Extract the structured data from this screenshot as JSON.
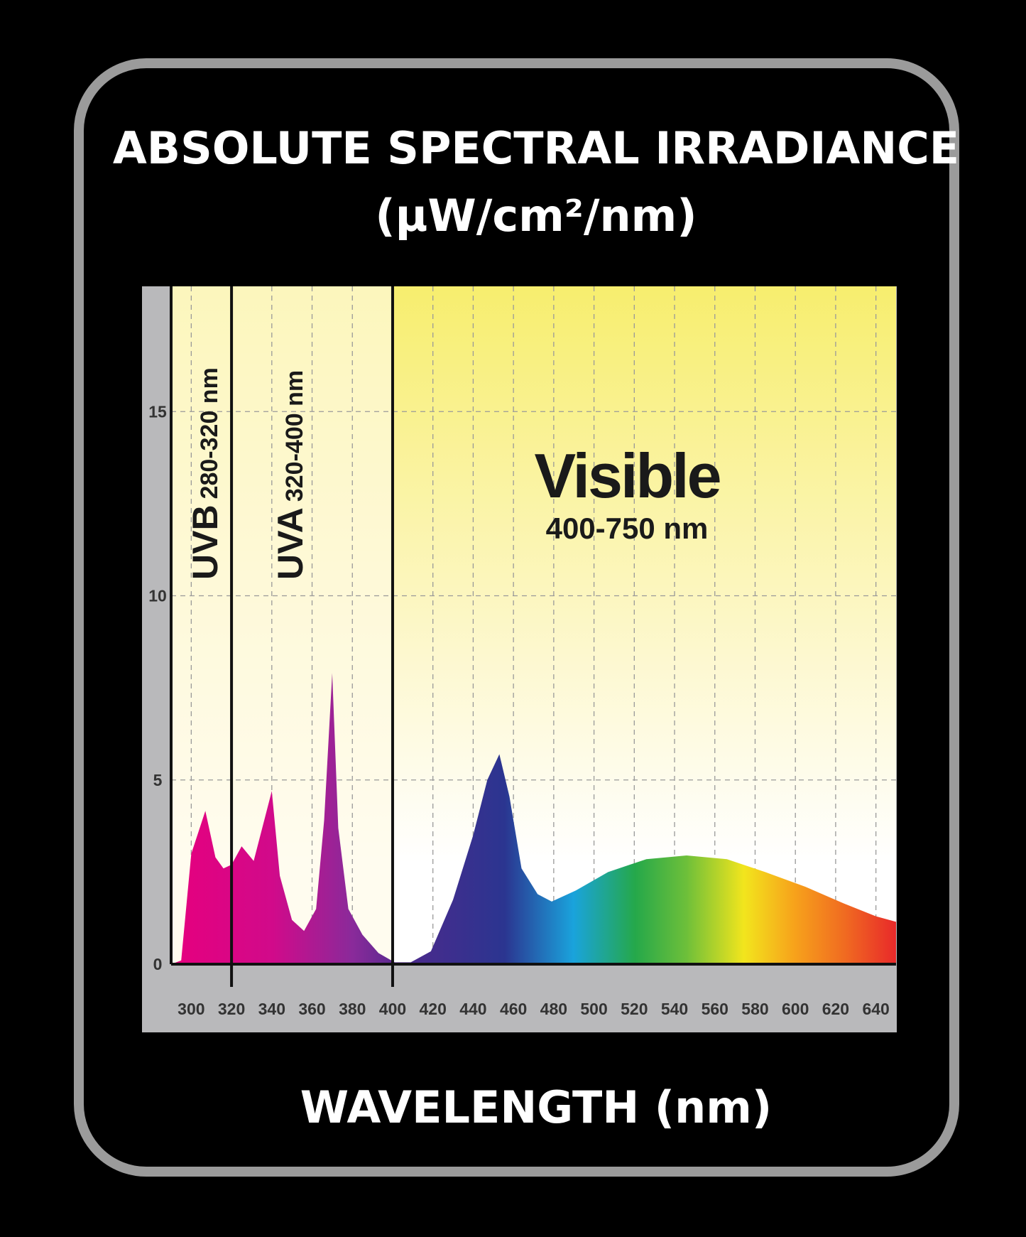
{
  "chart_data": {
    "type": "area",
    "title": "ABSOLUTE SPECTRAL IRRADIANCE",
    "subtitle": "(µW/cm²/nm)",
    "x_label": "WAVELENGTH (nm)",
    "x": [
      290,
      295,
      300,
      307,
      312,
      316,
      320,
      325,
      331,
      340,
      344,
      350,
      356,
      362,
      366,
      370,
      373,
      378,
      385,
      393,
      401,
      409,
      419,
      430,
      440,
      447,
      453,
      458,
      464,
      472,
      479,
      491,
      507,
      526,
      546,
      566,
      585,
      605,
      624,
      640,
      650
    ],
    "values": [
      0,
      0.1,
      3.0,
      4.16,
      2.9,
      2.6,
      2.7,
      3.2,
      2.8,
      4.7,
      2.4,
      1.2,
      0.9,
      1.5,
      3.9,
      7.9,
      3.7,
      1.5,
      0.8,
      0.3,
      0.05,
      0.05,
      0.35,
      1.75,
      3.5,
      5.0,
      5.7,
      4.55,
      2.6,
      1.9,
      1.7,
      2.0,
      2.5,
      2.85,
      2.95,
      2.85,
      2.5,
      2.1,
      1.65,
      1.3,
      1.15
    ],
    "xlim": [
      290,
      650
    ],
    "ylim": [
      0,
      18.4
    ],
    "xticks": [
      300,
      320,
      340,
      360,
      380,
      400,
      420,
      440,
      460,
      480,
      500,
      520,
      540,
      560,
      580,
      600,
      620,
      640
    ],
    "yticks": [
      0,
      5,
      10,
      15
    ],
    "grid": true,
    "dividers": [
      320,
      400
    ],
    "regions": [
      {
        "name": "UVB",
        "range": "280-320 nm"
      },
      {
        "name": "UVA",
        "range": "320-400 nm"
      },
      {
        "name": "Visible",
        "range": "400-750 nm"
      }
    ]
  }
}
